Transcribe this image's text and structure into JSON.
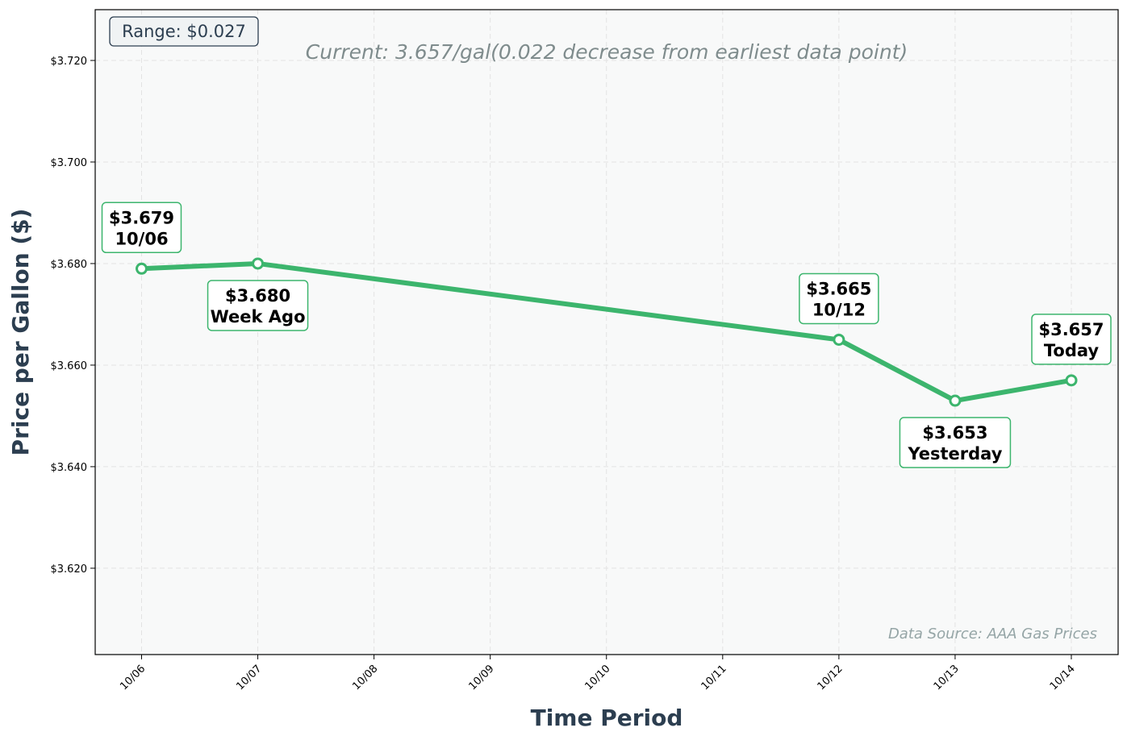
{
  "chart_data": {
    "type": "line",
    "xlabel": "Time Period",
    "ylabel": "Price per Gallon ($)",
    "subtitle": "Current: 3.657/gal(0.022 decrease from earliest data point)",
    "range_label": "Range: $0.027",
    "source_note": "Data Source: AAA Gas Prices",
    "categories": [
      "10/06",
      "10/07",
      "10/08",
      "10/09",
      "10/10",
      "10/11",
      "10/12",
      "10/13",
      "10/14"
    ],
    "ylim": [
      3.603,
      3.73
    ],
    "yticks": [
      3.62,
      3.64,
      3.66,
      3.68,
      3.7,
      3.72
    ],
    "ytick_labels": [
      "$3.620",
      "$3.640",
      "$3.660",
      "$3.680",
      "$3.700",
      "$3.720"
    ],
    "grid": true,
    "series": [
      {
        "points": [
          {
            "x": "10/06",
            "y": 3.679
          },
          {
            "x": "10/07",
            "y": 3.68
          },
          {
            "x": "10/12",
            "y": 3.665
          },
          {
            "x": "10/13",
            "y": 3.653
          },
          {
            "x": "10/14",
            "y": 3.657
          }
        ]
      }
    ],
    "annotations": [
      {
        "x": "10/06",
        "y": 3.679,
        "value": "$3.679",
        "label": "10/06",
        "position": "above"
      },
      {
        "x": "10/07",
        "y": 3.68,
        "value": "$3.680",
        "label": "Week Ago",
        "position": "below"
      },
      {
        "x": "10/12",
        "y": 3.665,
        "value": "$3.665",
        "label": "10/12",
        "position": "above"
      },
      {
        "x": "10/13",
        "y": 3.653,
        "value": "$3.653",
        "label": "Yesterday",
        "position": "below"
      },
      {
        "x": "10/14",
        "y": 3.657,
        "value": "$3.657",
        "label": "Today",
        "position": "above"
      }
    ]
  },
  "colors": {
    "line": "#3cb56d",
    "plot_background": "#f8f9f9",
    "axis_title": "#2c3e50",
    "subtitle": "#7f8c8d",
    "source": "#95a5a6"
  }
}
